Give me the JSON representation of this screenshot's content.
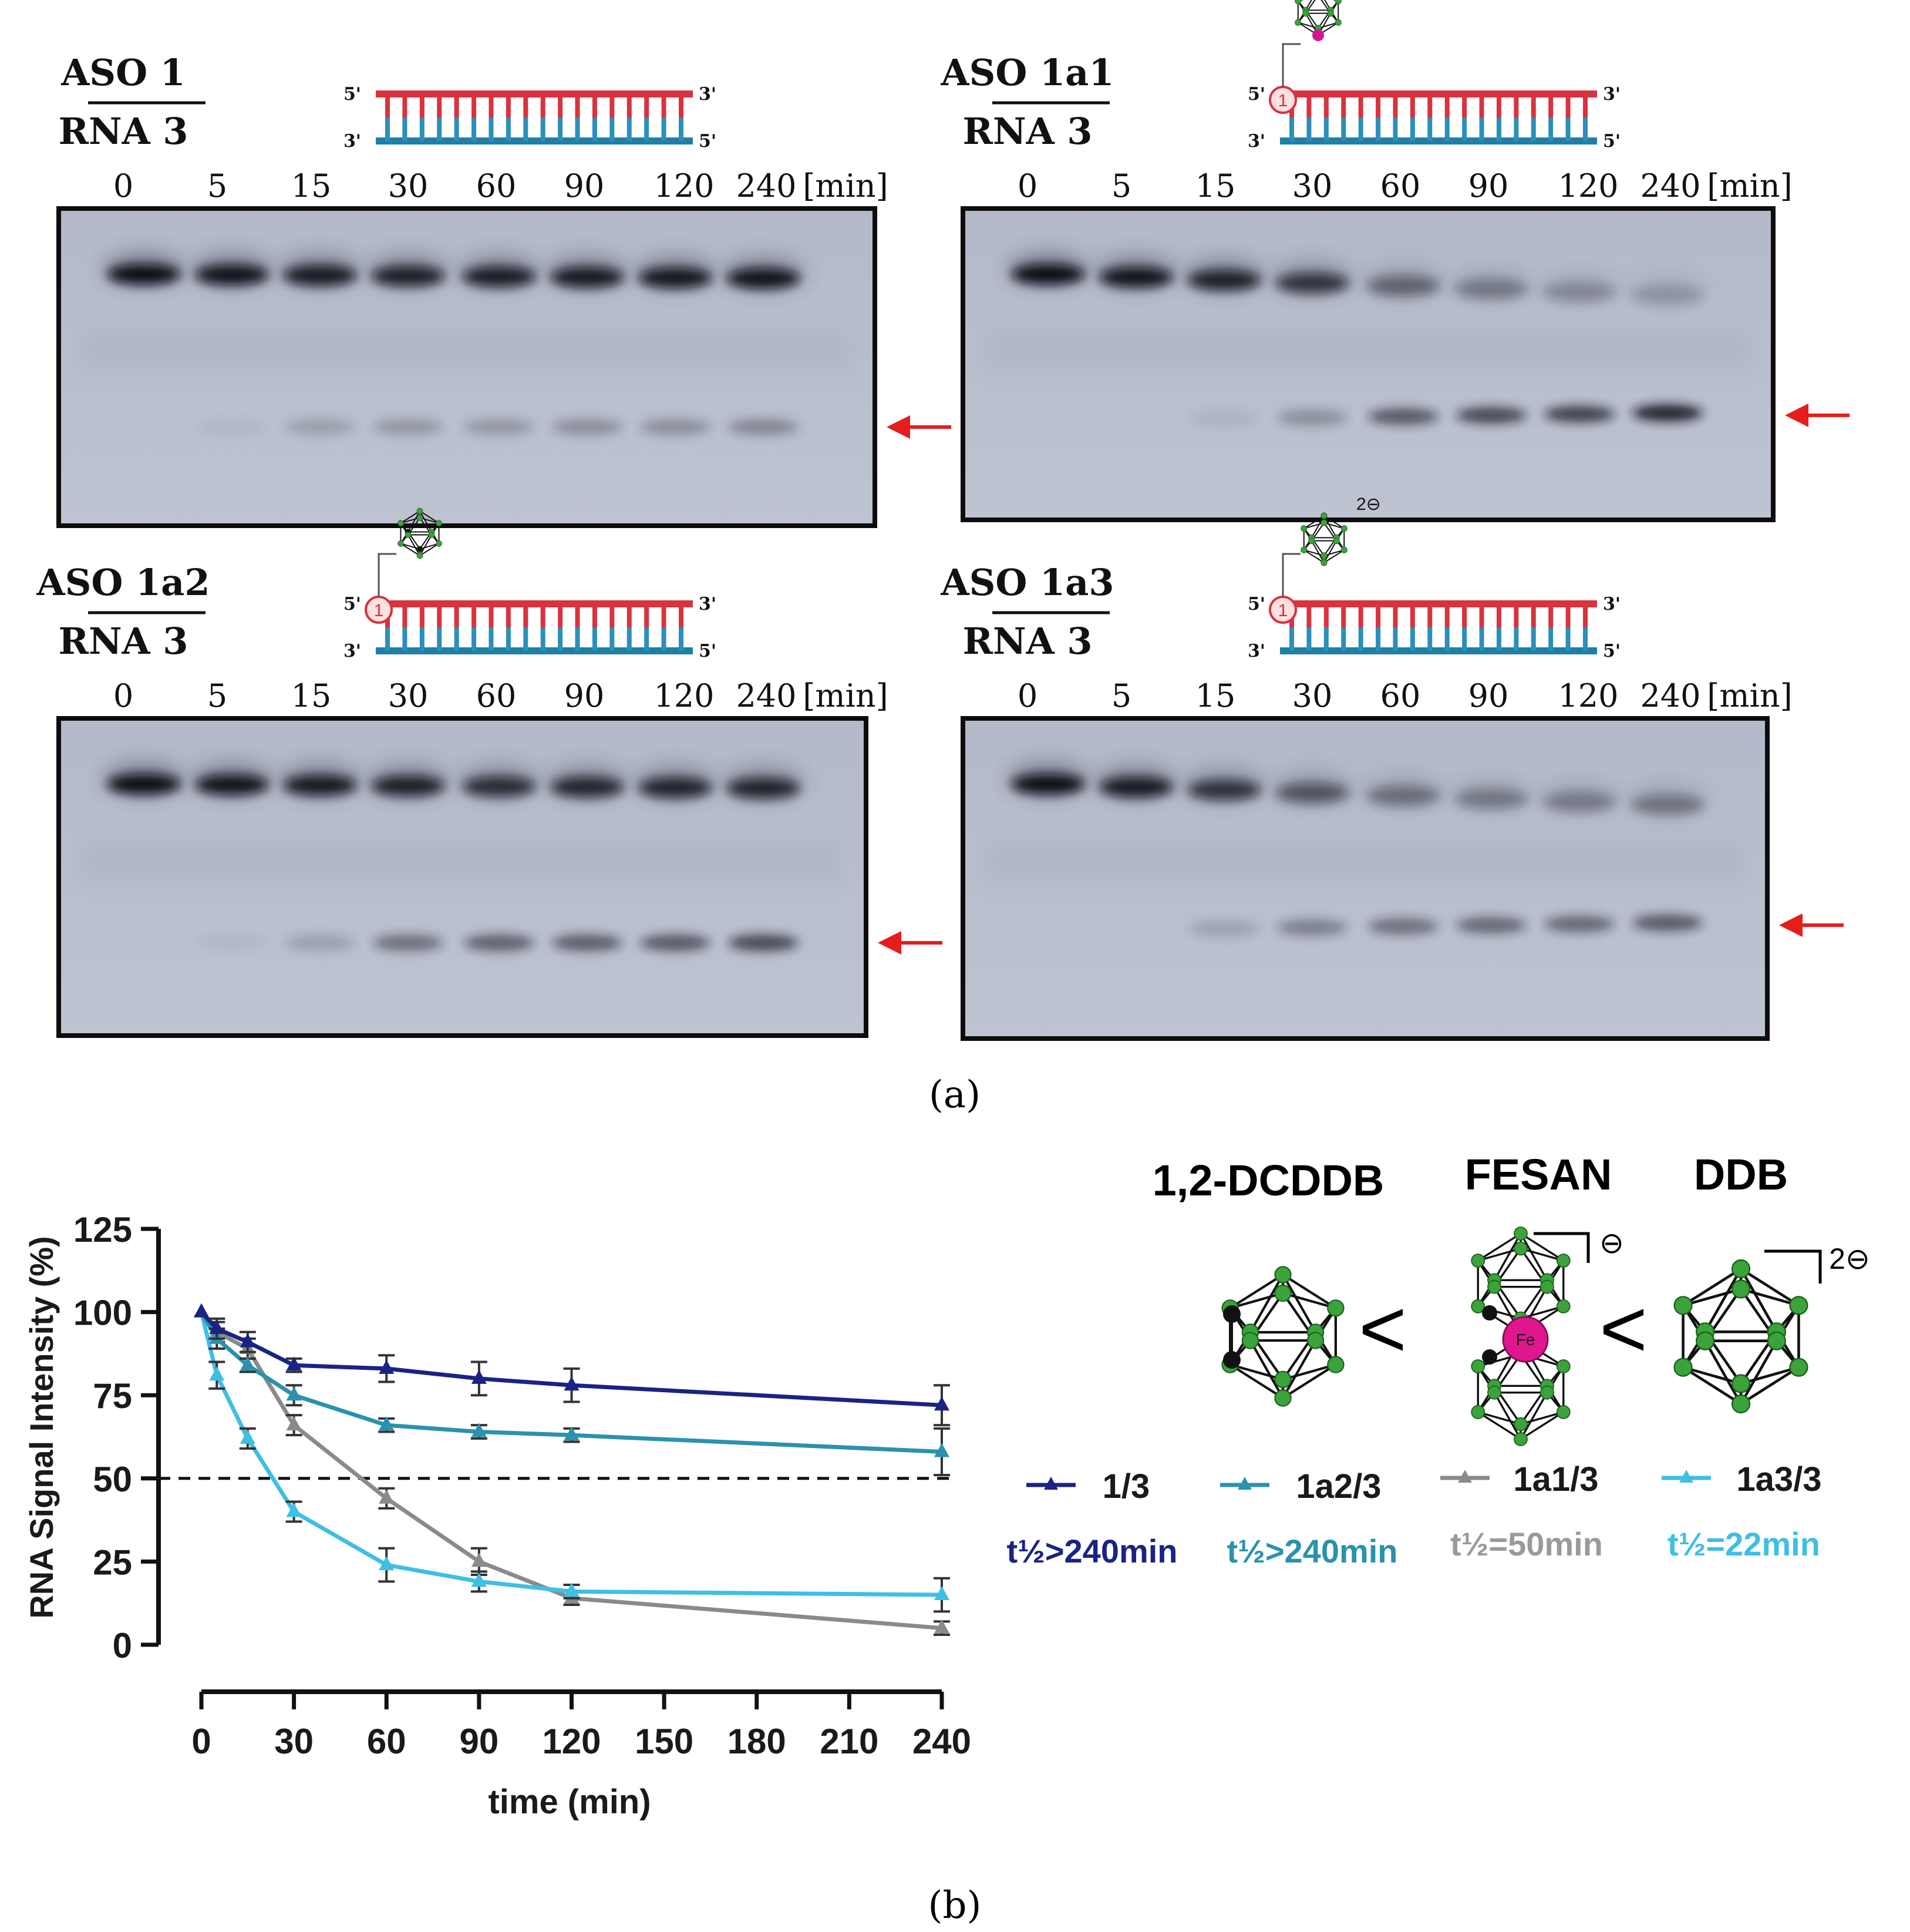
{
  "gels": [
    {
      "id": "aso1",
      "title_top": "ASO 1",
      "title_bottom": "RNA 3",
      "modification": "none",
      "lanes": [
        "0",
        "5",
        "15",
        "30",
        "60",
        "90",
        "120",
        "240"
      ],
      "unit": "[min]",
      "full_band": [
        1.0,
        0.95,
        0.9,
        0.85,
        0.87,
        0.9,
        0.92,
        0.95
      ],
      "cleaved_band": [
        0.0,
        0.05,
        0.2,
        0.25,
        0.25,
        0.3,
        0.3,
        0.35
      ]
    },
    {
      "id": "aso1a1",
      "title_top": "ASO 1a1",
      "title_bottom": "RNA 3",
      "modification": "FESAN",
      "lanes": [
        "0",
        "5",
        "15",
        "30",
        "60",
        "90",
        "120",
        "240"
      ],
      "unit": "[min]",
      "full_band": [
        1.0,
        0.95,
        0.85,
        0.7,
        0.35,
        0.22,
        0.12,
        0.05
      ],
      "cleaved_band": [
        0.0,
        0.0,
        0.08,
        0.3,
        0.65,
        0.75,
        0.8,
        1.0
      ]
    },
    {
      "id": "aso1a2",
      "title_top": "ASO 1a2",
      "title_bottom": "RNA 3",
      "modification": "1,2-DCDDB",
      "lanes": [
        "0",
        "5",
        "15",
        "30",
        "60",
        "90",
        "120",
        "240"
      ],
      "unit": "[min]",
      "full_band": [
        1.0,
        0.95,
        0.9,
        0.85,
        0.75,
        0.8,
        0.82,
        0.82
      ],
      "cleaved_band": [
        0.0,
        0.05,
        0.2,
        0.5,
        0.6,
        0.62,
        0.65,
        0.75
      ]
    },
    {
      "id": "aso1a3",
      "title_top": "ASO 1a3",
      "title_bottom": "RNA 3",
      "modification": "DDB",
      "lanes": [
        "0",
        "5",
        "15",
        "30",
        "60",
        "90",
        "120",
        "240"
      ],
      "unit": "[min]",
      "full_band": [
        1.0,
        0.9,
        0.7,
        0.45,
        0.28,
        0.22,
        0.2,
        0.25
      ],
      "cleaved_band": [
        0.0,
        0.0,
        0.18,
        0.4,
        0.5,
        0.55,
        0.55,
        0.65
      ]
    }
  ],
  "panel_a_label": "(a)",
  "panel_b_label": "(b)",
  "strand_labels": {
    "five": "5'",
    "three": "3'",
    "site": "1"
  },
  "charges": {
    "fesan": "⊖",
    "ddb": "2⊖"
  },
  "fe_label": "Fe",
  "clusters": {
    "names": [
      "1,2-DCDDB",
      "FESAN",
      "DDB"
    ],
    "comparator": "<"
  },
  "legend": [
    {
      "label": "1/3",
      "halflife": "t½>240min",
      "color": "#1a2384"
    },
    {
      "label": "1a2/3",
      "halflife": "t½>240min",
      "color": "#2a92ae"
    },
    {
      "label": "1a1/3",
      "halflife": "t½=50min",
      "color": "#8a8a8a"
    },
    {
      "label": "1a3/3",
      "halflife": "t½=22min",
      "color": "#3fbfe3"
    }
  ],
  "chart_data": {
    "type": "line",
    "title": "",
    "xlabel": "time (min)",
    "ylabel": "RNA Signal Intensity (%)",
    "xlim": [
      0,
      240
    ],
    "ylim": [
      0,
      125
    ],
    "xticks": [
      0,
      30,
      60,
      90,
      120,
      150,
      180,
      210,
      240
    ],
    "yticks": [
      0,
      25,
      50,
      75,
      100,
      125
    ],
    "reference_line": 50,
    "x": [
      0,
      5,
      15,
      30,
      60,
      90,
      120,
      240
    ],
    "series": [
      {
        "name": "1/3",
        "color": "#1a2384",
        "values": [
          100,
          95,
          91,
          84,
          83,
          80,
          78,
          72
        ],
        "errors": [
          0,
          3,
          3,
          2,
          4,
          5,
          5,
          6
        ]
      },
      {
        "name": "1a2/3",
        "color": "#2a92ae",
        "values": [
          100,
          92,
          84,
          75,
          66,
          64,
          63,
          58
        ],
        "errors": [
          0,
          3,
          2,
          3,
          2,
          2,
          2,
          7
        ]
      },
      {
        "name": "1a1/3",
        "color": "#8a8a8a",
        "values": [
          100,
          94,
          89,
          66,
          44,
          25,
          14,
          5
        ],
        "errors": [
          0,
          3,
          3,
          3,
          3,
          4,
          2,
          2
        ]
      },
      {
        "name": "1a3/3",
        "color": "#3fbfe3",
        "values": [
          100,
          81,
          62,
          40,
          24,
          19,
          16,
          15
        ],
        "errors": [
          0,
          4,
          3,
          3,
          5,
          3,
          2,
          5
        ]
      }
    ]
  }
}
